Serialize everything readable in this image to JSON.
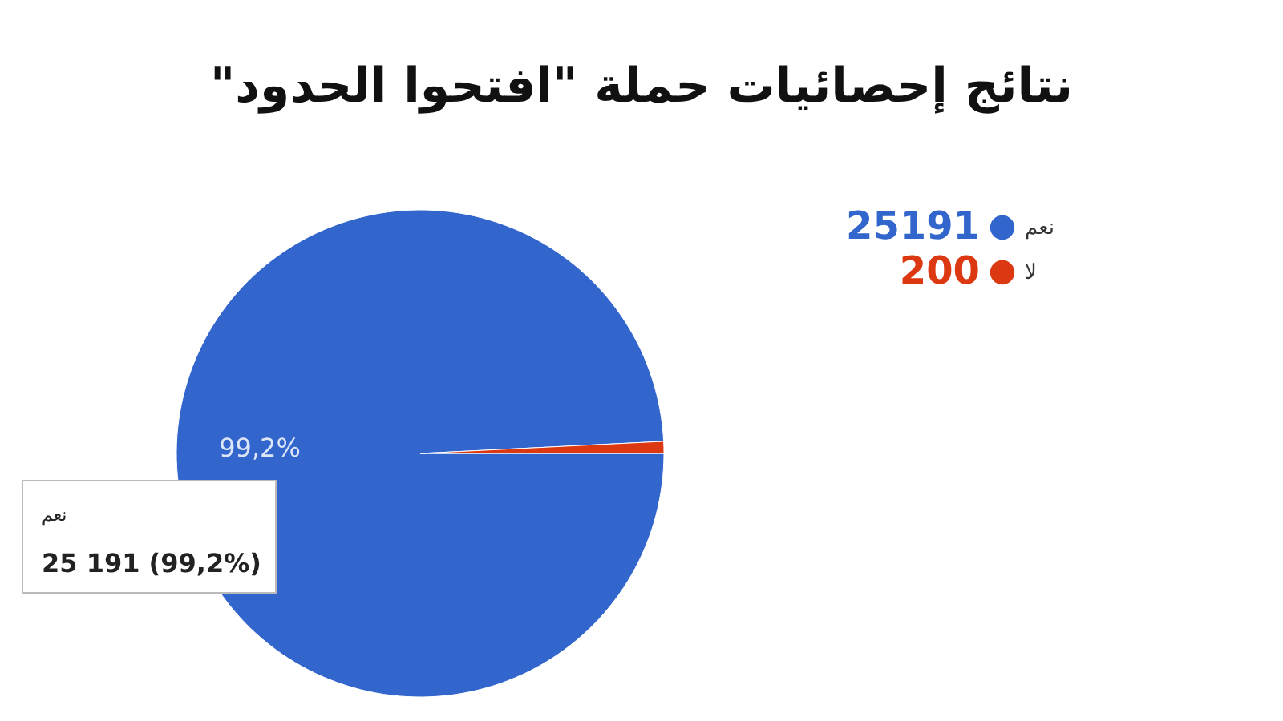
{
  "chart_data": {
    "type": "pie",
    "title": "نتائج إحصائيات حملة \"افتحوا الحدود\"",
    "categories": [
      "نعم",
      "لا"
    ],
    "values": [
      25191,
      200
    ],
    "colors": [
      "#3366cc",
      "#dc3912"
    ],
    "value_labels": [
      "25191",
      "200"
    ],
    "legend": "top right",
    "annotations": [
      "99,2%",
      "نعم",
      "25 191 (99,2%)"
    ]
  }
}
